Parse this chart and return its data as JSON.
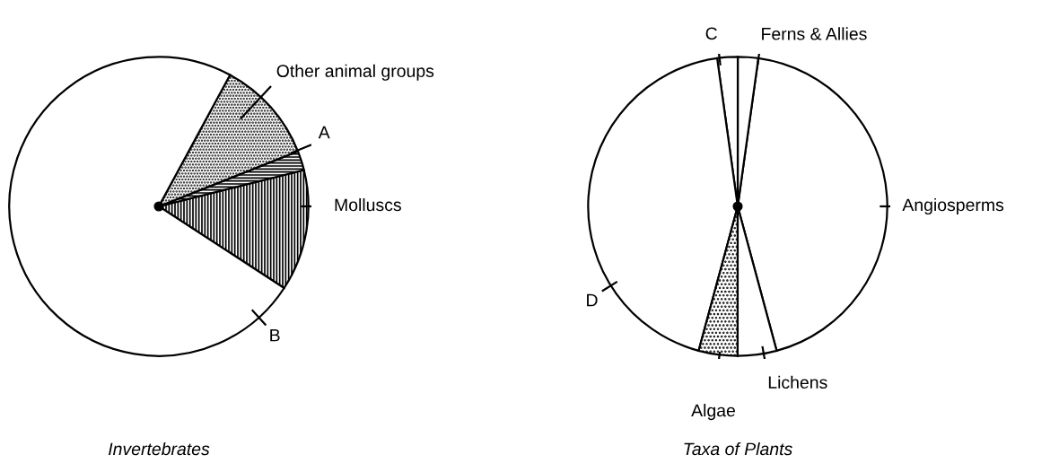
{
  "chart_data": [
    {
      "type": "pie",
      "title": "Invertebrates",
      "categories": [
        "Molluscs",
        "A",
        "Other animal groups",
        "B"
      ],
      "values": [
        13.1,
        2.1,
        11.1,
        73.7
      ],
      "colors": [
        "#000000",
        "#000000",
        "#000000",
        "#ffffff"
      ]
    },
    {
      "type": "pie",
      "title": "Taxa of Plants",
      "categories": [
        "Angiosperms",
        "Ferns & Allies",
        "C",
        "D",
        "Algae",
        "Lichens"
      ],
      "values": [
        43.6,
        2.2,
        2.2,
        43.6,
        4.2,
        4.2
      ],
      "colors": [
        "#ffffff",
        "#ffffff",
        "#ffffff",
        "#ffffff",
        "#000000",
        "#ffffff"
      ]
    }
  ]
}
